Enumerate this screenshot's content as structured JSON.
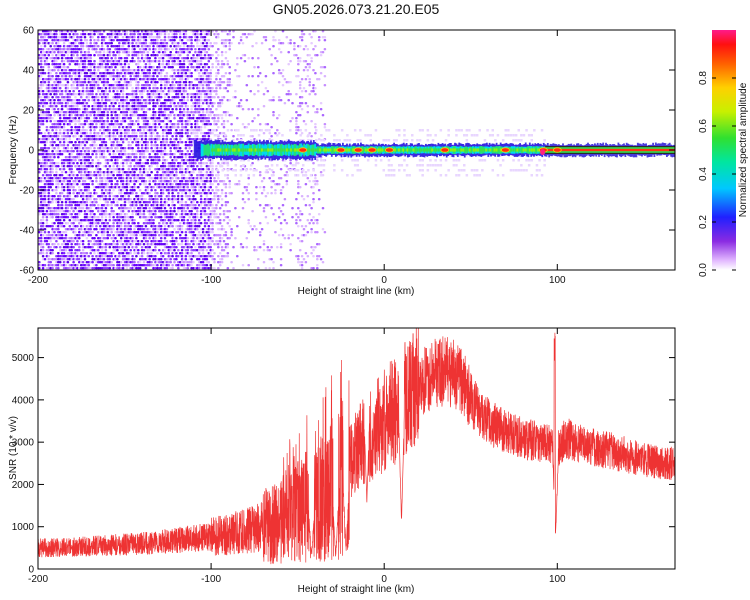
{
  "title": "GN05.2026.073.21.20.E05",
  "colors": {
    "snr_line": "#ee3333",
    "frame": "#000000"
  },
  "chart_data": [
    {
      "type": "heatmap",
      "xlabel": "Height of straight line (km)",
      "ylabel": "Frequency (Hz)",
      "xlim": [
        -200,
        168
      ],
      "ylim": [
        -60,
        60
      ],
      "xticks": [
        "-200",
        "-100",
        "0",
        "100"
      ],
      "yticks": [
        "-60",
        "-40",
        "-20",
        "0",
        "20",
        "40",
        "60"
      ],
      "colorbar": {
        "label": "Normalized spectral amplitude",
        "range": [
          0,
          1
        ],
        "ticks": [
          "0.0",
          "0.2",
          "0.4",
          "0.6",
          "0.8"
        ],
        "colormap": "rainbow (white-violet-blue-cyan-green-yellow-orange-red-pink)"
      },
      "features": {
        "noise_region_x": [
          -200,
          -35
        ],
        "dense_noise_until_x": -100,
        "carrier_frequency_hz": 0,
        "carrier_start_x": -110,
        "carrier_peak_points_x": [
          -47,
          -25,
          -15,
          -7,
          3,
          35,
          70,
          92,
          100
        ]
      }
    },
    {
      "type": "line",
      "xlabel": "Height of straight line (km)",
      "ylabel": "SNR (10 * v/v)",
      "xlim": [
        -200,
        168
      ],
      "ylim": [
        0,
        5700
      ],
      "xticks": [
        "-200",
        "-100",
        "0",
        "100"
      ],
      "yticks": [
        "0",
        "1000",
        "2000",
        "3000",
        "4000",
        "5000"
      ],
      "series": [
        {
          "envelope_x": [
            -200,
            -180,
            -160,
            -140,
            -120,
            -100,
            -90,
            -80,
            -70,
            -60,
            -50,
            -45,
            -40,
            -35,
            -30,
            -25,
            -20,
            -15,
            -10,
            -5,
            0,
            10,
            15,
            20,
            25,
            30,
            35,
            40,
            45,
            50,
            60,
            70,
            80,
            90,
            95,
            100,
            105,
            110,
            120,
            130,
            140,
            150,
            160,
            168
          ],
          "envelope_y": [
            500,
            520,
            560,
            600,
            680,
            760,
            820,
            900,
            1000,
            1150,
            1350,
            1500,
            1600,
            1700,
            1900,
            2200,
            2500,
            2900,
            3100,
            3300,
            3500,
            3900,
            4100,
            4350,
            4500,
            4650,
            4700,
            4600,
            4450,
            4000,
            3500,
            3250,
            3100,
            3000,
            2950,
            2850,
            3100,
            3000,
            2900,
            2800,
            2700,
            2600,
            2500,
            2500
          ],
          "dips": [
            {
              "x": -42,
              "y": 200
            },
            {
              "x": -28,
              "y": 150
            },
            {
              "x": -22,
              "y": 300
            },
            {
              "x": -10,
              "y": 1500
            },
            {
              "x": 10,
              "y": 1000
            },
            {
              "x": 99,
              "y": 700
            }
          ],
          "spikes": [
            {
              "x": 98.5,
              "y": 5600
            }
          ]
        }
      ]
    }
  ]
}
